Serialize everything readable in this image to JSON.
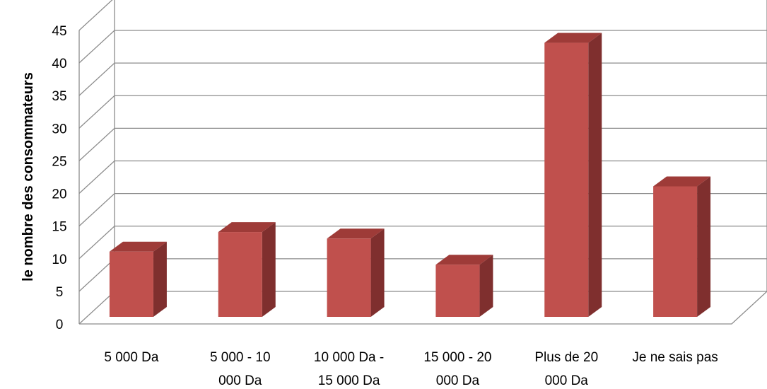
{
  "chart_data": {
    "type": "bar",
    "style": "3d-column",
    "categories": [
      [
        "5 000 Da"
      ],
      [
        "5 000 - 10",
        "000 Da"
      ],
      [
        "10 000 Da -",
        "15 000 Da"
      ],
      [
        "15 000 - 20",
        "000 Da"
      ],
      [
        "Plus de 20",
        "000 Da"
      ],
      [
        "Je ne sais pas"
      ]
    ],
    "values": [
      10,
      13,
      12,
      8,
      42,
      20
    ],
    "title": "",
    "xlabel": "",
    "ylabel": "le nombre des consommateurs",
    "ylim": [
      0,
      45
    ],
    "yticks": [
      0,
      5,
      10,
      15,
      20,
      25,
      30,
      35,
      40,
      45
    ],
    "grid": true,
    "legend": "none",
    "colors": {
      "bar_front": "#c0504d",
      "bar_side": "#7f2f2e",
      "bar_top": "#9e3b38",
      "gridline": "#8c8c8c"
    }
  }
}
